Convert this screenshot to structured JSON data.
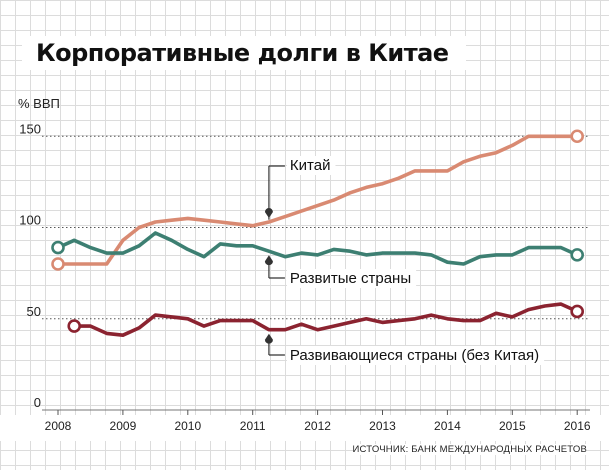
{
  "chart_data": {
    "type": "line",
    "title": "Корпоративные долги в Китае",
    "ylabel": "% ВВП",
    "ylim": [
      0,
      160
    ],
    "xlim": [
      2008,
      2016.3
    ],
    "yticks": [
      "0",
      "50",
      "100",
      "150"
    ],
    "xticks": [
      "2008",
      "2009",
      "2010",
      "2011",
      "2012",
      "2013",
      "2014",
      "2015",
      "2016"
    ],
    "grid": "dotted-horizontal",
    "source": "ИСТОЧНИК: БАНК МЕЖДУНАРОДНЫХ РАСЧЕТОВ",
    "series": [
      {
        "name": "Китай",
        "color": "#d98a72",
        "x": [
          2008.0,
          2008.25,
          2008.5,
          2008.75,
          2009.0,
          2009.25,
          2009.5,
          2009.75,
          2010.0,
          2010.25,
          2010.5,
          2010.75,
          2011.0,
          2011.25,
          2011.5,
          2011.75,
          2012.0,
          2012.25,
          2012.5,
          2012.75,
          2013.0,
          2013.25,
          2013.5,
          2013.75,
          2014.0,
          2014.25,
          2014.5,
          2014.75,
          2015.0,
          2015.25,
          2015.5,
          2015.75,
          2016.0
        ],
        "values": [
          80,
          80,
          80,
          80,
          93,
          100,
          103,
          104,
          105,
          104,
          103,
          102,
          101,
          103,
          106,
          109,
          112,
          115,
          119,
          122,
          124,
          127,
          131,
          131,
          131,
          136,
          139,
          141,
          145,
          150,
          150,
          150,
          150
        ]
      },
      {
        "name": "Развитые страны",
        "color": "#3d7f72",
        "x": [
          2008.0,
          2008.25,
          2008.5,
          2008.75,
          2009.0,
          2009.25,
          2009.5,
          2009.75,
          2010.0,
          2010.25,
          2010.5,
          2010.75,
          2011.0,
          2011.25,
          2011.5,
          2011.75,
          2012.0,
          2012.25,
          2012.5,
          2012.75,
          2013.0,
          2013.25,
          2013.5,
          2013.75,
          2014.0,
          2014.25,
          2014.5,
          2014.75,
          2015.0,
          2015.25,
          2015.5,
          2015.75,
          2016.0
        ],
        "values": [
          89,
          93,
          89,
          86,
          86,
          90,
          97,
          93,
          88,
          84,
          91,
          90,
          90,
          87,
          84,
          86,
          85,
          88,
          87,
          85,
          86,
          86,
          86,
          85,
          81,
          80,
          84,
          85,
          85,
          89,
          89,
          89,
          85
        ]
      },
      {
        "name": "Развивающиеся страны (без Китая)",
        "color": "#8b2330",
        "x": [
          2008.25,
          2008.5,
          2008.75,
          2009.0,
          2009.25,
          2009.5,
          2009.75,
          2010.0,
          2010.25,
          2010.5,
          2010.75,
          2011.0,
          2011.25,
          2011.5,
          2011.75,
          2012.0,
          2012.25,
          2012.5,
          2012.75,
          2013.0,
          2013.25,
          2013.5,
          2013.75,
          2014.0,
          2014.25,
          2014.5,
          2014.75,
          2015.0,
          2015.25,
          2015.5,
          2015.75,
          2016.0
        ],
        "values": [
          46,
          46,
          42,
          41,
          45,
          52,
          51,
          50,
          46,
          49,
          49,
          49,
          44,
          44,
          47,
          44,
          46,
          48,
          50,
          48,
          49,
          50,
          52,
          50,
          49,
          49,
          53,
          51,
          55,
          57,
          58,
          54
        ]
      }
    ],
    "annotations": [
      {
        "text": "Китай",
        "series": 0
      },
      {
        "text": "Развитые страны",
        "series": 1
      },
      {
        "text": "Развивающиеся страны (без Китая)",
        "series": 2
      }
    ]
  }
}
